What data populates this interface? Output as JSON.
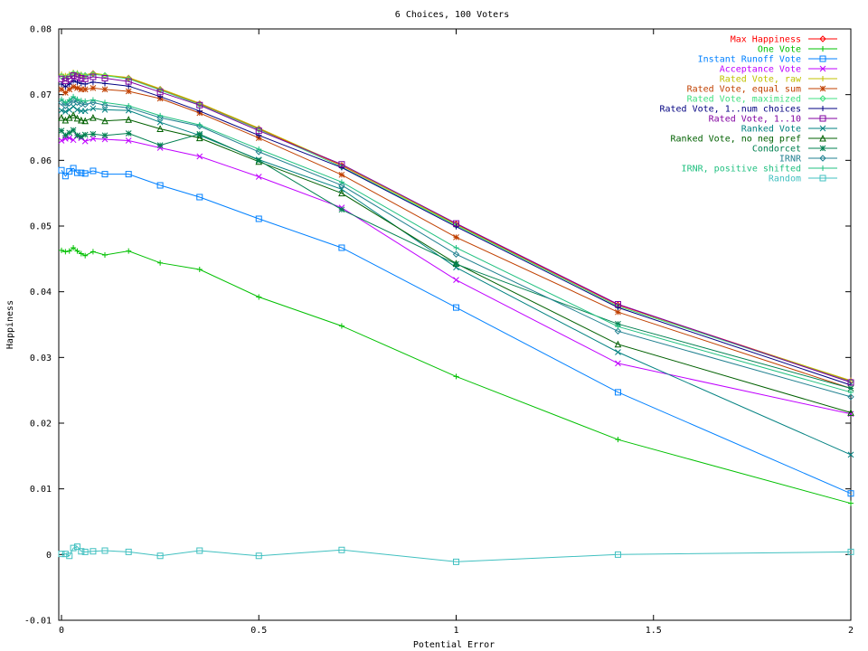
{
  "chart_data": {
    "type": "line",
    "title": "6 Choices, 100 Voters",
    "xlabel": "Potential Error",
    "ylabel": "Happiness",
    "xlim": [
      0,
      2
    ],
    "ylim": [
      -0.01,
      0.08
    ],
    "xticks": [
      0,
      0.5,
      1,
      1.5,
      2
    ],
    "xtick_labels": [
      "0",
      "0.5",
      "1",
      "1.5",
      "2"
    ],
    "yticks": [
      -0.01,
      0,
      0.01,
      0.02,
      0.03,
      0.04,
      0.05,
      0.06,
      0.07,
      0.08
    ],
    "ytick_labels": [
      "-0.01",
      "0",
      "0.01",
      "0.02",
      "0.03",
      "0.04",
      "0.05",
      "0.06",
      "0.07",
      "0.08"
    ],
    "grid": false,
    "legend_position": "top-right",
    "x": [
      0,
      0.01,
      0.02,
      0.03,
      0.04,
      0.05,
      0.06,
      0.08,
      0.11,
      0.17,
      0.25,
      0.35,
      0.5,
      0.71,
      1,
      1.41,
      2
    ],
    "series": [
      {
        "name": "Max Happiness",
        "color": "#ff0000",
        "marker": "diamond",
        "values": [
          0.0728,
          0.0725,
          0.0728,
          0.0732,
          0.0731,
          0.0729,
          0.0729,
          0.0732,
          0.0729,
          0.0725,
          0.0708,
          0.0686,
          0.0648,
          0.0592,
          0.0503,
          0.038,
          0.0264
        ]
      },
      {
        "name": "One Vote",
        "color": "#00c000",
        "marker": "plus",
        "values": [
          0.0463,
          0.0461,
          0.0462,
          0.0467,
          0.0462,
          0.0458,
          0.0455,
          0.0461,
          0.0456,
          0.0462,
          0.0444,
          0.0434,
          0.0392,
          0.0348,
          0.0271,
          0.0175,
          0.0078
        ]
      },
      {
        "name": "Instant Runoff Vote",
        "color": "#0080ff",
        "marker": "square",
        "values": [
          0.0585,
          0.0576,
          0.0583,
          0.0588,
          0.0581,
          0.0581,
          0.058,
          0.0584,
          0.0579,
          0.0579,
          0.0562,
          0.0544,
          0.0511,
          0.0467,
          0.0376,
          0.0247,
          0.0093
        ]
      },
      {
        "name": "Acceptance Vote",
        "color": "#c000ff",
        "marker": "x",
        "values": [
          0.063,
          0.0633,
          0.0634,
          0.0631,
          0.0637,
          0.0634,
          0.0629,
          0.0633,
          0.0632,
          0.063,
          0.0619,
          0.0606,
          0.0575,
          0.0528,
          0.0418,
          0.0291,
          0.0214
        ]
      },
      {
        "name": "Rated Vote, raw",
        "color": "#c0c000",
        "marker": "plus",
        "values": [
          0.0731,
          0.0729,
          0.0731,
          0.0734,
          0.0733,
          0.0731,
          0.073,
          0.0733,
          0.073,
          0.0726,
          0.0709,
          0.0687,
          0.0649,
          0.0593,
          0.0502,
          0.0378,
          0.0265
        ]
      },
      {
        "name": "Rated Vote, equal sum",
        "color": "#c04000",
        "marker": "star",
        "values": [
          0.0708,
          0.0703,
          0.0708,
          0.0712,
          0.071,
          0.0708,
          0.0708,
          0.071,
          0.0708,
          0.0705,
          0.0694,
          0.0672,
          0.0634,
          0.0578,
          0.0483,
          0.0369,
          0.0253
        ]
      },
      {
        "name": "Rated Vote, maximized",
        "color": "#40e080",
        "marker": "diamond",
        "values": [
          0.0728,
          0.0725,
          0.0728,
          0.0732,
          0.0731,
          0.0729,
          0.0729,
          0.0731,
          0.0729,
          0.0724,
          0.0707,
          0.0685,
          0.0647,
          0.059,
          0.0501,
          0.0378,
          0.0263
        ]
      },
      {
        "name": "Rated Vote, 1..num choices",
        "color": "#000080",
        "marker": "plus",
        "values": [
          0.0716,
          0.0712,
          0.0716,
          0.0721,
          0.0719,
          0.0717,
          0.0716,
          0.0719,
          0.0717,
          0.0713,
          0.0697,
          0.0675,
          0.0638,
          0.0589,
          0.0499,
          0.0376,
          0.0258
        ]
      },
      {
        "name": "Rated Vote, 1..10",
        "color": "#8000a0",
        "marker": "square",
        "values": [
          0.0724,
          0.0721,
          0.0724,
          0.0729,
          0.0727,
          0.0725,
          0.0724,
          0.0727,
          0.0725,
          0.072,
          0.0704,
          0.0684,
          0.0645,
          0.0594,
          0.0504,
          0.0381,
          0.0262
        ]
      },
      {
        "name": "Ranked Vote",
        "color": "#008080",
        "marker": "x",
        "values": [
          0.0676,
          0.0674,
          0.0677,
          0.0682,
          0.0677,
          0.0675,
          0.0675,
          0.0679,
          0.0677,
          0.0676,
          0.0658,
          0.0638,
          0.0601,
          0.0556,
          0.0437,
          0.0308,
          0.0152
        ]
      },
      {
        "name": "Ranked Vote, no neg pref",
        "color": "#006000",
        "marker": "triangle",
        "values": [
          0.0665,
          0.0661,
          0.0665,
          0.0669,
          0.0664,
          0.0661,
          0.066,
          0.0665,
          0.066,
          0.0662,
          0.0648,
          0.0634,
          0.0598,
          0.055,
          0.0443,
          0.032,
          0.0216
        ]
      },
      {
        "name": "Condorcet",
        "color": "#008050",
        "marker": "star",
        "values": [
          0.0645,
          0.0638,
          0.0642,
          0.0646,
          0.0638,
          0.0636,
          0.0639,
          0.064,
          0.0638,
          0.0641,
          0.0623,
          0.064,
          0.06,
          0.0525,
          0.0442,
          0.0351,
          0.0253
        ]
      },
      {
        "name": "IRNR",
        "color": "#208090",
        "marker": "diamond",
        "values": [
          0.0688,
          0.0683,
          0.0687,
          0.0692,
          0.0688,
          0.0686,
          0.0685,
          0.0688,
          0.0684,
          0.068,
          0.0665,
          0.0652,
          0.0613,
          0.0562,
          0.0457,
          0.034,
          0.024
        ]
      },
      {
        "name": "IRNR, positive shifted",
        "color": "#20c080",
        "marker": "plus",
        "values": [
          0.0693,
          0.0688,
          0.0692,
          0.0697,
          0.0693,
          0.0691,
          0.069,
          0.0692,
          0.0688,
          0.0683,
          0.0668,
          0.0654,
          0.0617,
          0.0567,
          0.0467,
          0.0347,
          0.0247
        ]
      },
      {
        "name": "Random",
        "color": "#40c0c0",
        "marker": "square",
        "values": [
          0.0001,
          0.0001,
          -0.0002,
          0.001,
          0.0012,
          0.0005,
          0.0004,
          0.0005,
          0.0006,
          0.0004,
          -0.0002,
          0.0006,
          -0.0002,
          0.0007,
          -0.0011,
          0.0,
          0.0004
        ]
      }
    ]
  }
}
